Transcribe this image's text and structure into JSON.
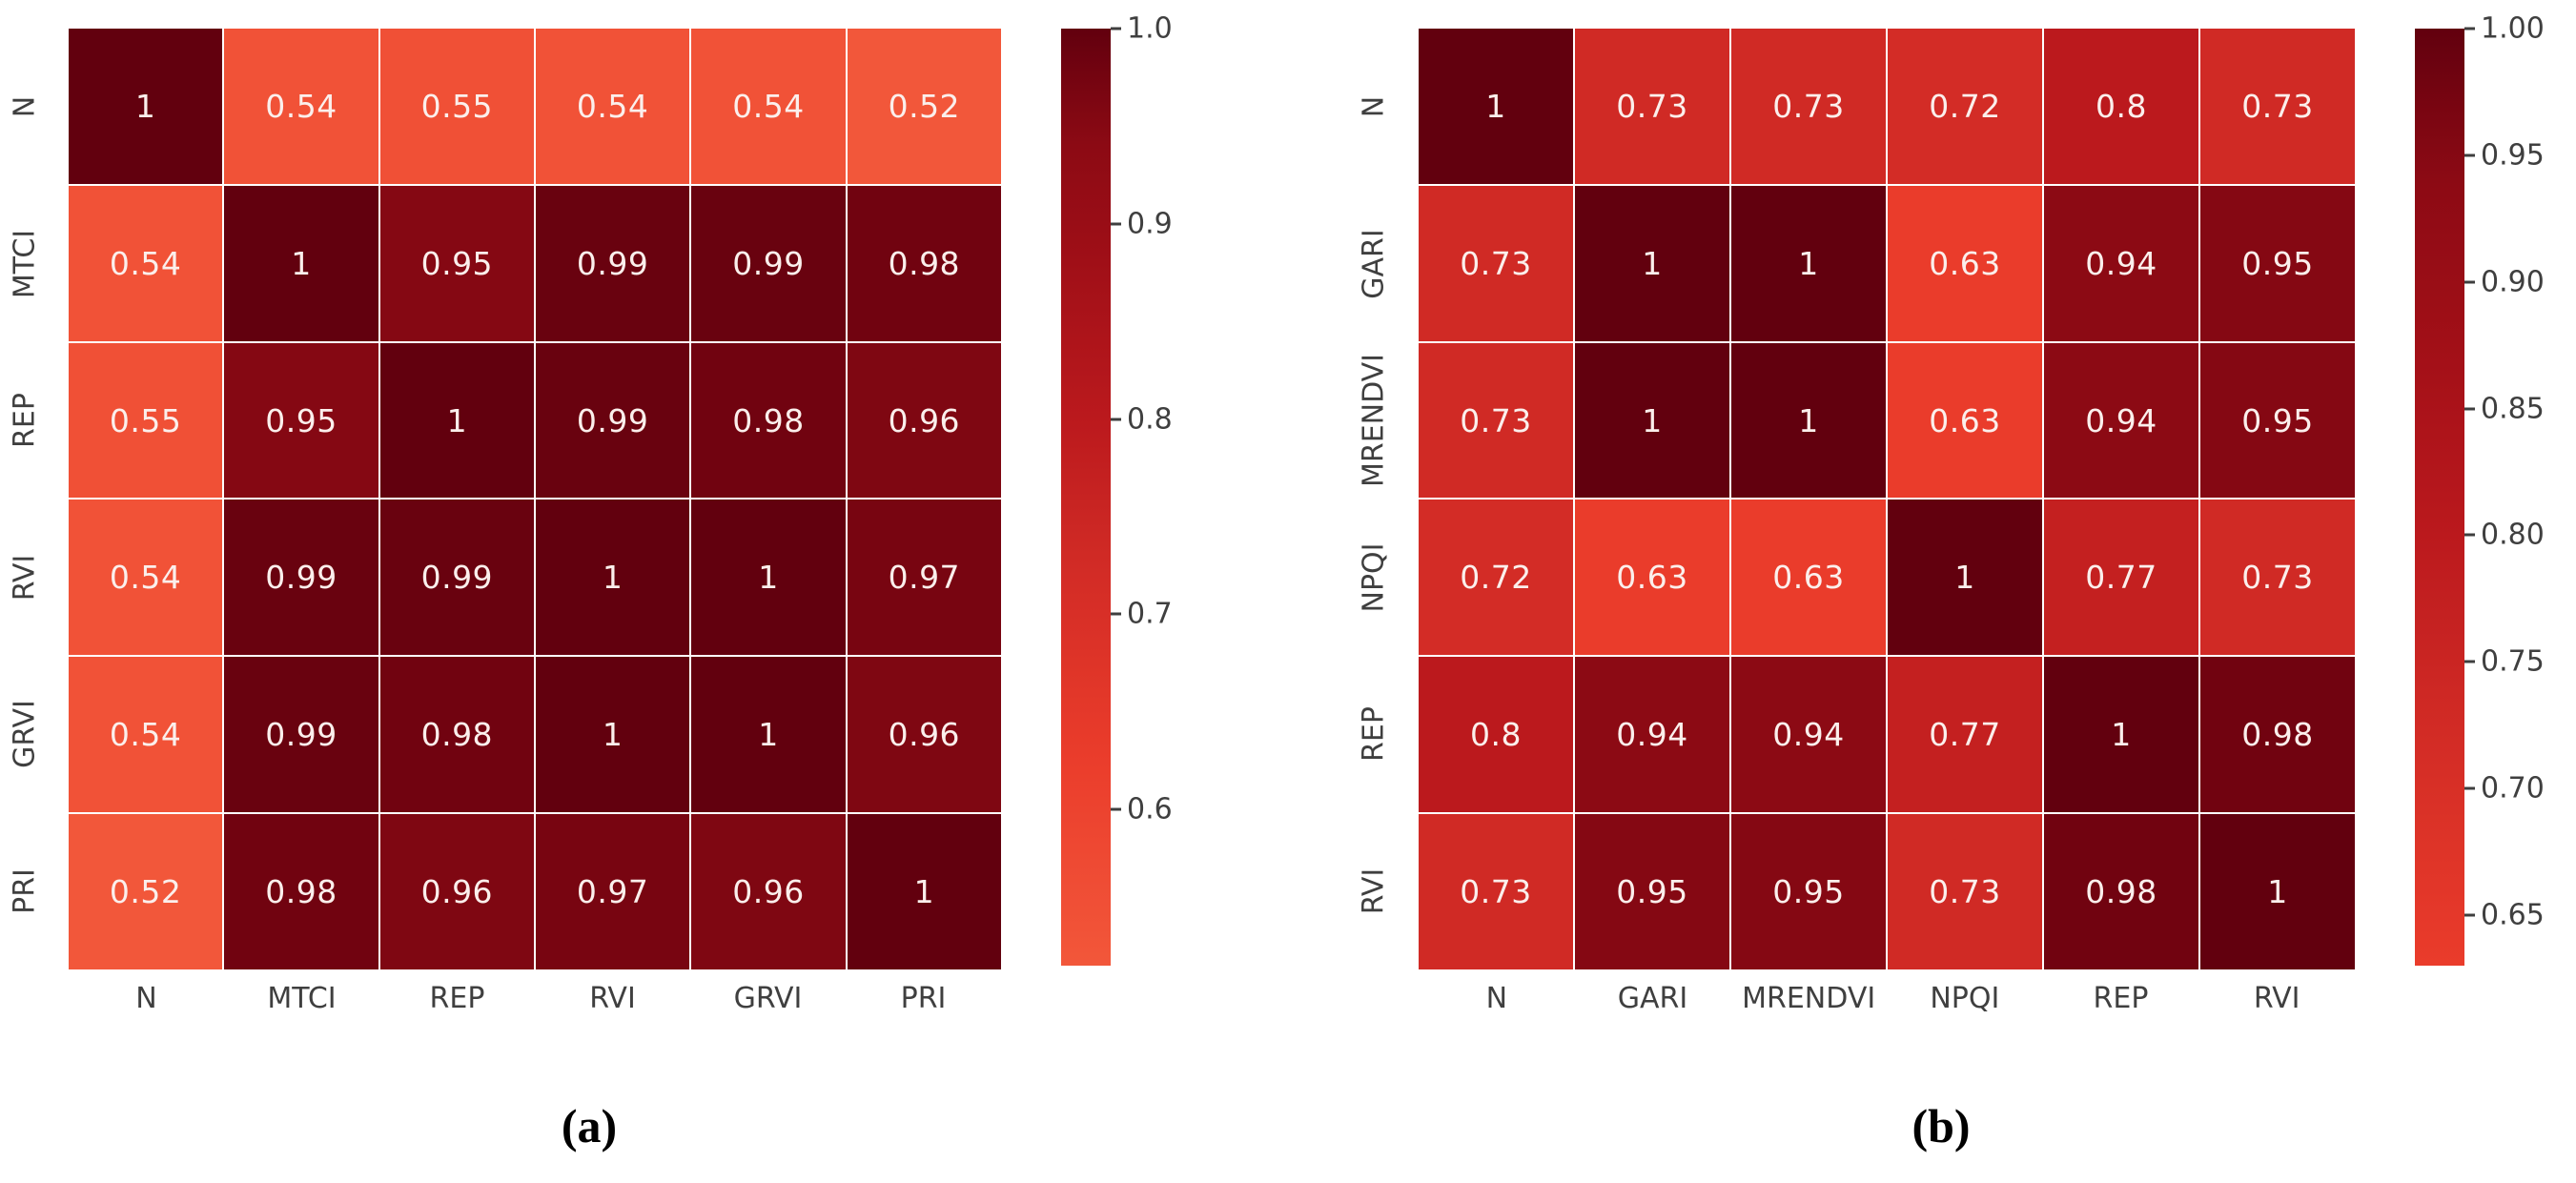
{
  "style": {
    "background": "#ffffff",
    "annot_color": "#fbefec",
    "axis_label_color": "#3f3f3f",
    "tick_mark_color": "#3f3f3f",
    "caption_color": "#000000",
    "cell_gap_color": "#ffffff",
    "diagonal_color": "#62000e",
    "min_color": "#f2573a"
  },
  "colormap_stops": [
    [
      0.52,
      "#f2573a"
    ],
    [
      0.63,
      "#ea3c2b"
    ],
    [
      0.73,
      "#d02a25"
    ],
    [
      0.8,
      "#bb191d"
    ],
    [
      0.88,
      "#a00f17"
    ],
    [
      0.94,
      "#8c0a14"
    ],
    [
      0.97,
      "#780511"
    ],
    [
      1.0,
      "#62000e"
    ]
  ],
  "chart_data": [
    {
      "type": "heatmap",
      "caption": "(a)",
      "x_categories": [
        "N",
        "MTCI",
        "REP",
        "RVI",
        "GRVI",
        "PRI"
      ],
      "y_categories": [
        "N",
        "MTCI",
        "REP",
        "RVI",
        "GRVI",
        "PRI"
      ],
      "matrix": [
        [
          1,
          0.54,
          0.55,
          0.54,
          0.54,
          0.52
        ],
        [
          0.54,
          1,
          0.95,
          0.99,
          0.99,
          0.98
        ],
        [
          0.55,
          0.95,
          1,
          0.99,
          0.98,
          0.96
        ],
        [
          0.54,
          0.99,
          0.99,
          1,
          1,
          0.97
        ],
        [
          0.54,
          0.99,
          0.98,
          1,
          1,
          0.96
        ],
        [
          0.52,
          0.98,
          0.96,
          0.97,
          0.96,
          1
        ]
      ],
      "vmin": 0.52,
      "vmax": 1.0,
      "colorbar_ticks": [
        "1.0",
        "0.9",
        "0.8",
        "0.7",
        "0.6"
      ],
      "legend_position": "right",
      "grid": false
    },
    {
      "type": "heatmap",
      "caption": "(b)",
      "x_categories": [
        "N",
        "GARI",
        "MRENDVI",
        "NPQI",
        "REP",
        "RVI"
      ],
      "y_categories": [
        "N",
        "GARI",
        "MRENDVI",
        "NPQI",
        "REP",
        "RVI"
      ],
      "matrix": [
        [
          1,
          0.73,
          0.73,
          0.72,
          0.8,
          0.73
        ],
        [
          0.73,
          1,
          1,
          0.63,
          0.94,
          0.95
        ],
        [
          0.73,
          1,
          1,
          0.63,
          0.94,
          0.95
        ],
        [
          0.72,
          0.63,
          0.63,
          1,
          0.77,
          0.73
        ],
        [
          0.8,
          0.94,
          0.94,
          0.77,
          1,
          0.98
        ],
        [
          0.73,
          0.95,
          0.95,
          0.73,
          0.98,
          1
        ]
      ],
      "vmin": 0.63,
      "vmax": 1.0,
      "colorbar_ticks": [
        "1.00",
        "0.95",
        "0.90",
        "0.85",
        "0.80",
        "0.75",
        "0.70",
        "0.65"
      ],
      "legend_position": "right",
      "grid": false
    }
  ]
}
